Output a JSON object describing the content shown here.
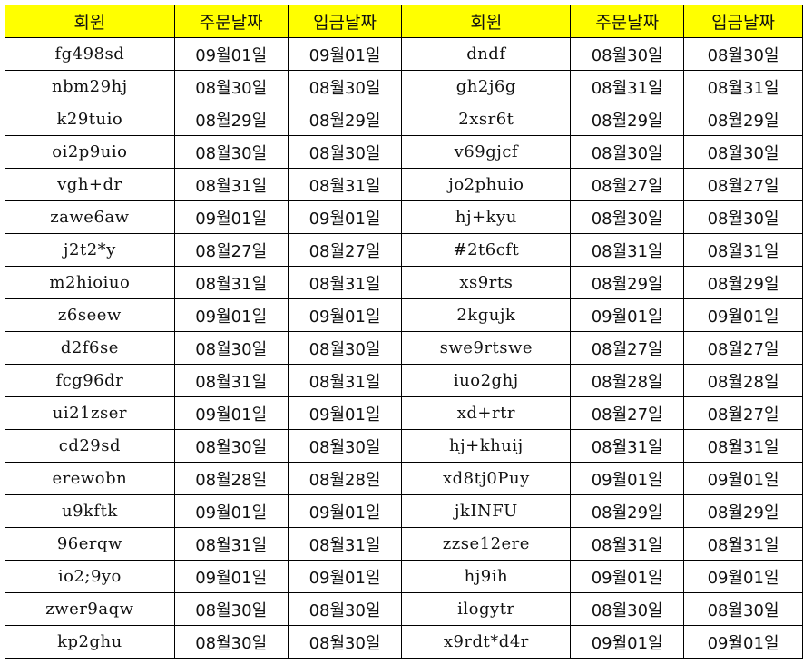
{
  "colors": {
    "header_bg": "#ffff00",
    "grid": "#000000"
  },
  "headers": [
    "회원",
    "주문날짜",
    "입금날짜",
    "회원",
    "주문날짜",
    "입금날짜"
  ],
  "rows": [
    [
      "fg498sd",
      "09월01일",
      "09월01일",
      "dndf",
      "08월30일",
      "08월30일"
    ],
    [
      "nbm29hj",
      "08월30일",
      "08월30일",
      "gh2j6g",
      "08월31일",
      "08월31일"
    ],
    [
      "k29tuio",
      "08월29일",
      "08월29일",
      "2xsr6t",
      "08월29일",
      "08월29일"
    ],
    [
      "oi2p9uio",
      "08월30일",
      "08월30일",
      "v69gjcf",
      "08월30일",
      "08월30일"
    ],
    [
      "vgh+dr",
      "08월31일",
      "08월31일",
      "jo2phuio",
      "08월27일",
      "08월27일"
    ],
    [
      "zawe6aw",
      "09월01일",
      "09월01일",
      "hj+kyu",
      "08월30일",
      "08월30일"
    ],
    [
      "j2t2*y",
      "08월27일",
      "08월27일",
      "#2t6cft",
      "08월31일",
      "08월31일"
    ],
    [
      "m2hioiuo",
      "08월31일",
      "08월31일",
      "xs9rts",
      "08월29일",
      "08월29일"
    ],
    [
      "z6seew",
      "09월01일",
      "09월01일",
      "2kgujk",
      "09월01일",
      "09월01일"
    ],
    [
      "d2f6se",
      "08월30일",
      "08월30일",
      "swe9rtswe",
      "08월27일",
      "08월27일"
    ],
    [
      "fcg96dr",
      "08월31일",
      "08월31일",
      "iuo2ghj",
      "08월28일",
      "08월28일"
    ],
    [
      "ui21zser",
      "09월01일",
      "09월01일",
      "xd+rtr",
      "08월27일",
      "08월27일"
    ],
    [
      "cd29sd",
      "08월30일",
      "08월30일",
      "hj+khuij",
      "08월31일",
      "08월31일"
    ],
    [
      "erewobn",
      "08월28일",
      "08월28일",
      "xd8tj0Puy",
      "09월01일",
      "09월01일"
    ],
    [
      "u9kftk",
      "09월01일",
      "09월01일",
      "jkINFU",
      "08월29일",
      "08월29일"
    ],
    [
      "96erqw",
      "08월31일",
      "08월31일",
      "zzse12ere",
      "08월31일",
      "08월31일"
    ],
    [
      "io2;9yo",
      "09월01일",
      "09월01일",
      "hj9ih",
      "09월01일",
      "09월01일"
    ],
    [
      "zwer9aqw",
      "08월30일",
      "08월30일",
      "ilogytr",
      "08월30일",
      "08월30일"
    ],
    [
      "kp2ghu",
      "08월30일",
      "08월30일",
      "x9rdt*d4r",
      "09월01일",
      "09월01일"
    ]
  ]
}
